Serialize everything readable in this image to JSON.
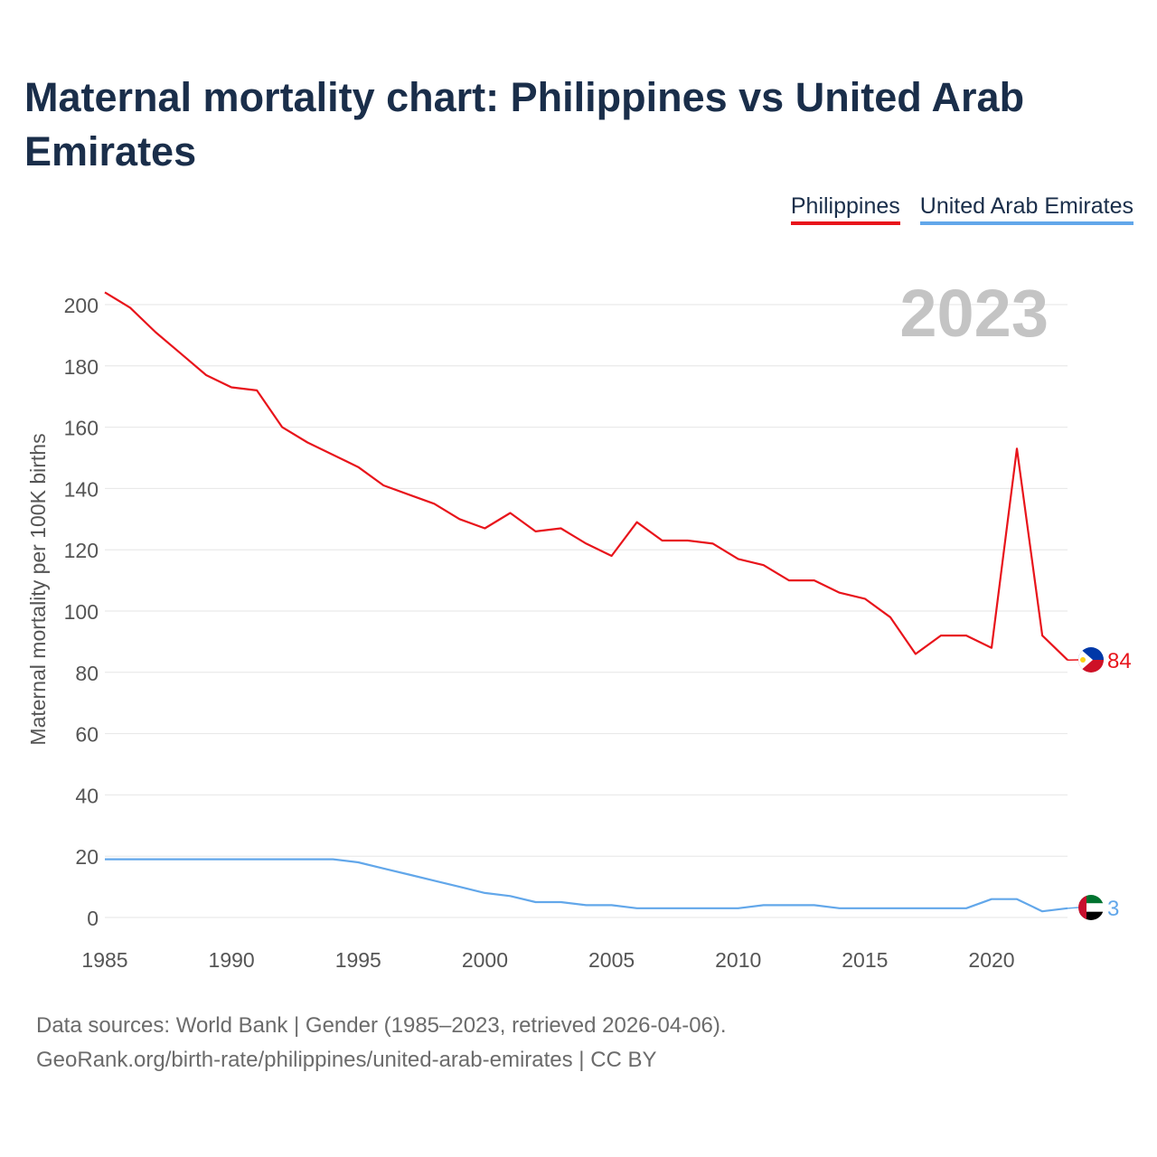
{
  "title": "Maternal mortality chart: Philippines vs United Arab Emirates",
  "legend": {
    "items": [
      {
        "label": "Philippines",
        "color": "#e8141b"
      },
      {
        "label": "United Arab Emirates",
        "color": "#62a7ea"
      }
    ]
  },
  "chart_data": {
    "type": "line",
    "title": "Maternal mortality chart: Philippines vs United Arab Emirates",
    "xlabel": "",
    "ylabel": "Maternal mortality per 100K births",
    "xlim": [
      1985,
      2023
    ],
    "ylim": [
      0,
      210
    ],
    "x_ticks": [
      1985,
      1990,
      1995,
      2000,
      2005,
      2010,
      2015,
      2020
    ],
    "y_ticks": [
      0,
      20,
      40,
      60,
      80,
      100,
      120,
      140,
      160,
      180,
      200
    ],
    "year_watermark": "2023",
    "grid": true,
    "legend_position": "top-right",
    "x": [
      1985,
      1986,
      1987,
      1988,
      1989,
      1990,
      1991,
      1992,
      1993,
      1994,
      1995,
      1996,
      1997,
      1998,
      1999,
      2000,
      2001,
      2002,
      2003,
      2004,
      2005,
      2006,
      2007,
      2008,
      2009,
      2010,
      2011,
      2012,
      2013,
      2014,
      2015,
      2016,
      2017,
      2018,
      2019,
      2020,
      2021,
      2022,
      2023
    ],
    "series": [
      {
        "name": "Philippines",
        "color": "#e8141b",
        "end_label": "84",
        "values": [
          204,
          199,
          191,
          184,
          177,
          173,
          172,
          160,
          155,
          151,
          147,
          141,
          138,
          135,
          130,
          127,
          132,
          126,
          127,
          122,
          118,
          129,
          123,
          123,
          122,
          117,
          115,
          110,
          110,
          106,
          104,
          98,
          86,
          92,
          92,
          88,
          153,
          92,
          84
        ]
      },
      {
        "name": "United Arab Emirates",
        "color": "#62a7ea",
        "end_label": "3",
        "values": [
          19,
          19,
          19,
          19,
          19,
          19,
          19,
          19,
          19,
          19,
          18,
          16,
          14,
          12,
          10,
          8,
          7,
          5,
          5,
          4,
          4,
          3,
          3,
          3,
          3,
          3,
          4,
          4,
          4,
          3,
          3,
          3,
          3,
          3,
          3,
          6,
          6,
          2,
          3
        ]
      }
    ]
  },
  "footer": {
    "line1": "Data sources: World Bank | Gender (1985–2023, retrieved 2026-04-06).",
    "line2": "GeoRank.org/birth-rate/philippines/united-arab-emirates | CC BY"
  }
}
